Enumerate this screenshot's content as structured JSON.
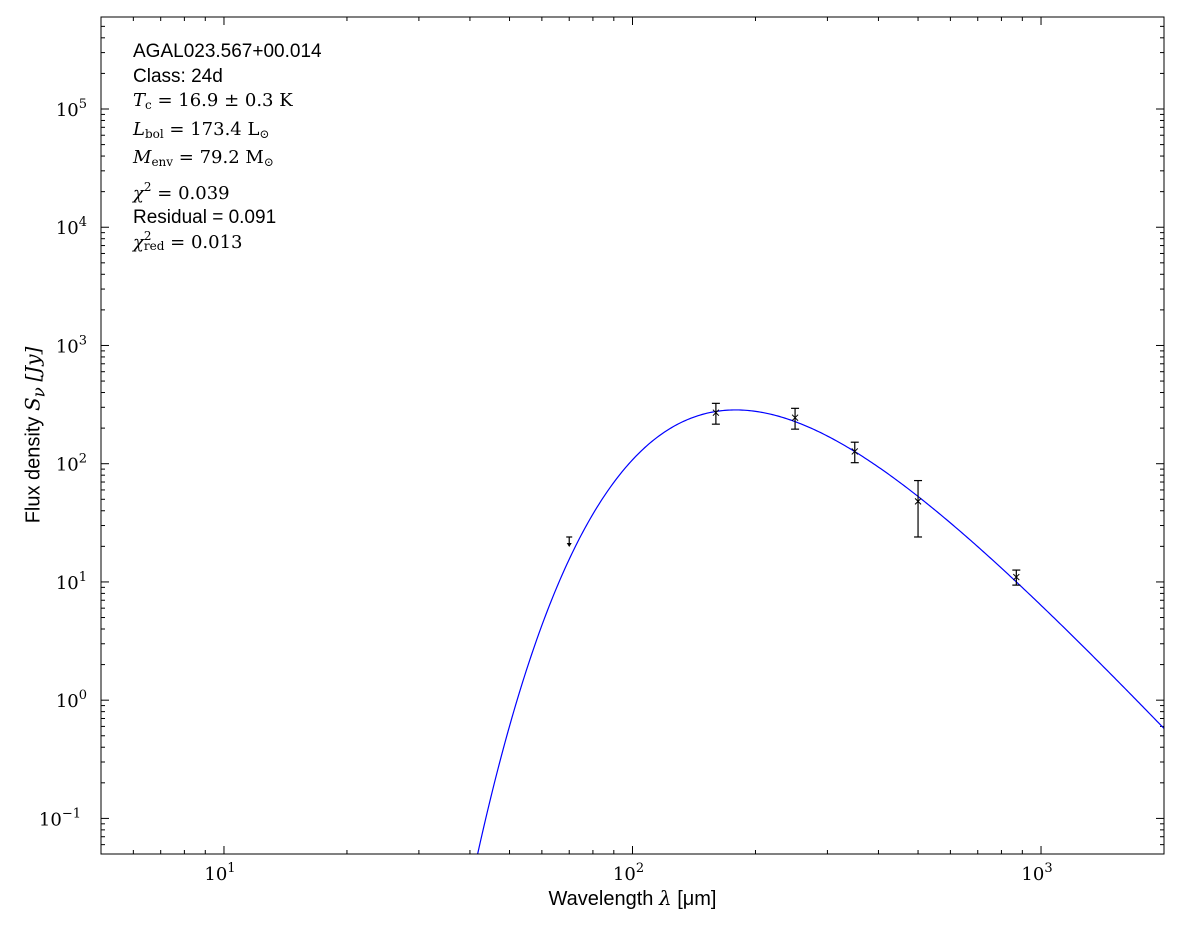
{
  "chart_data": {
    "type": "scatter",
    "xlabel": {
      "text": "Wavelength",
      "symbol": "λ",
      "unit": "[μm]"
    },
    "ylabel": {
      "text": "Flux density",
      "symbol": "S",
      "sub": "ν",
      "unit": "[Jy]"
    },
    "xscale": "log",
    "yscale": "log",
    "xlim": [
      5,
      2000
    ],
    "ylim": [
      0.05,
      600000
    ],
    "x_ticks": [
      {
        "value": 10,
        "base": "10",
        "exp": "1"
      },
      {
        "value": 100,
        "base": "10",
        "exp": "2"
      },
      {
        "value": 1000,
        "base": "10",
        "exp": "3"
      }
    ],
    "y_ticks": [
      {
        "value": 0.1,
        "base": "10",
        "exp": "−1"
      },
      {
        "value": 1,
        "base": "10",
        "exp": "0"
      },
      {
        "value": 10,
        "base": "10",
        "exp": "1"
      },
      {
        "value": 100,
        "base": "10",
        "exp": "2"
      },
      {
        "value": 1000,
        "base": "10",
        "exp": "3"
      },
      {
        "value": 10000,
        "base": "10",
        "exp": "4"
      },
      {
        "value": 100000,
        "base": "10",
        "exp": "5"
      }
    ],
    "grid": false,
    "points": [
      {
        "x": 160,
        "y": 270,
        "yerr": 54
      },
      {
        "x": 250,
        "y": 245,
        "yerr": 49
      },
      {
        "x": 350,
        "y": 127,
        "yerr": 25
      },
      {
        "x": 500,
        "y": 48,
        "yerr": 24
      },
      {
        "x": 870,
        "y": 11,
        "yerr": 1.6
      }
    ],
    "upper_limits": [
      {
        "x": 70,
        "y": 24
      }
    ],
    "model": {
      "kind": "greybody",
      "temperature_K": 16.9,
      "beta": 1.8,
      "peak_flux_Jy": 285,
      "color": "#0000ff"
    },
    "marker_color": "#000000",
    "annotations": {
      "source": "AGAL023.567+00.014",
      "class": "Class: 24d",
      "tc": {
        "sym": "T",
        "sub": "c",
        "rest": " = 16.9 ± 0.3 K"
      },
      "lbol": {
        "sym": "L",
        "sub": "bol",
        "rest": " = 173.4 L",
        "unit_sub": "⊙"
      },
      "menv": {
        "sym": "M",
        "sub": "env",
        "rest": " = 79.2 M",
        "unit_sub": "⊙"
      },
      "chi2": {
        "sym": "χ",
        "sup": "2",
        "rest": " = 0.039"
      },
      "residual": "Residual = 0.091",
      "chi2red": {
        "sym": "χ",
        "sup": "2",
        "sub": "red",
        "rest": " = 0.013"
      }
    }
  }
}
